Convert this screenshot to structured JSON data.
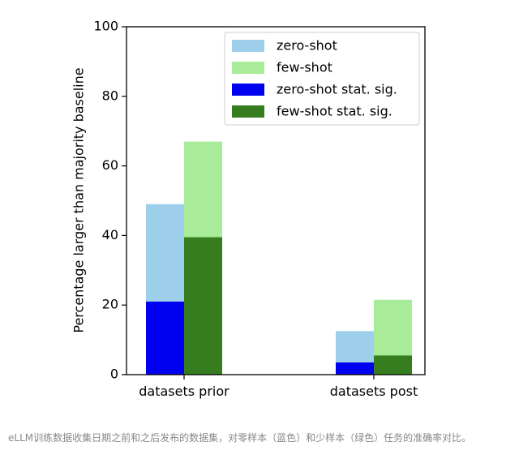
{
  "chart_data": {
    "type": "bar",
    "title": "",
    "xlabel": "",
    "ylabel": "Percentage larger than majority baseline",
    "ylim": [
      0,
      100
    ],
    "yticks": [
      0,
      20,
      40,
      60,
      80,
      100
    ],
    "categories": [
      "datasets prior",
      "datasets post"
    ],
    "series": [
      {
        "name": "zero-shot",
        "color": "#9ecfea",
        "values": [
          49,
          12.5
        ]
      },
      {
        "name": "few-shot",
        "color": "#a8ec9a",
        "values": [
          67,
          21.5
        ]
      },
      {
        "name": "zero-shot stat. sig.",
        "color": "#0000f0",
        "values": [
          21,
          3.5
        ]
      },
      {
        "name": "few-shot stat. sig.",
        "color": "#357d1f",
        "values": [
          39.5,
          5.5
        ]
      }
    ],
    "legend_position": "top-right",
    "grid": false
  },
  "caption": "eLLM训练数据收集日期之前和之后发布的数据集，对零样本（蓝色）和少样本（绿色）任务的准确率对比。"
}
